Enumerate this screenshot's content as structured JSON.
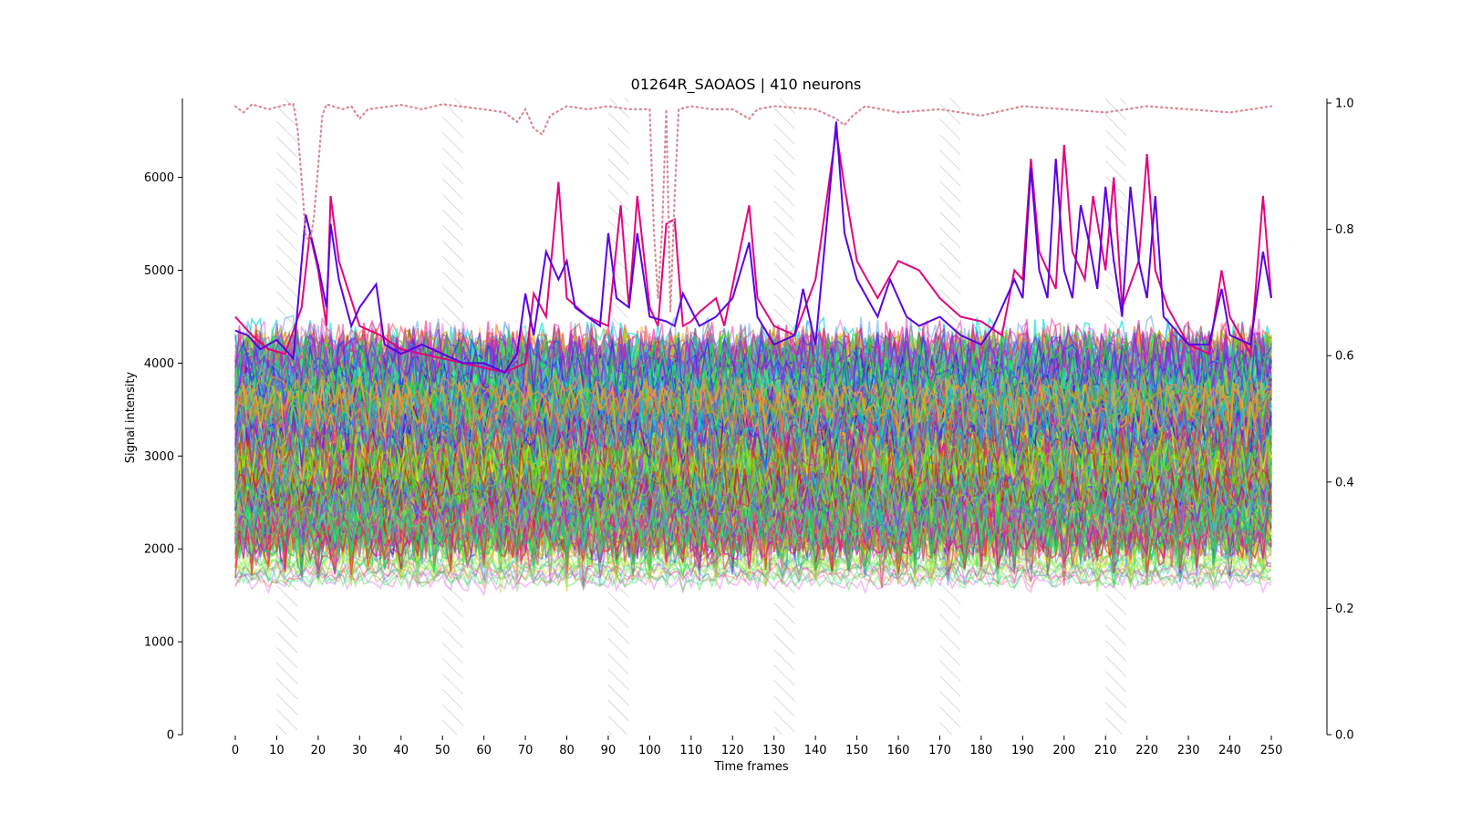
{
  "chart_data": {
    "type": "line",
    "title": "01264R_SAOAOS | 410 neurons",
    "xlabel": "Time frames",
    "ylabel": "Signal intensity",
    "xlim": [
      0,
      250
    ],
    "ylim": [
      0,
      6850
    ],
    "y2lim": [
      0,
      1.0
    ],
    "grid": false,
    "legend": "none",
    "x_ticks": [
      0,
      10,
      20,
      30,
      40,
      50,
      60,
      70,
      80,
      90,
      100,
      110,
      120,
      130,
      140,
      150,
      160,
      170,
      180,
      190,
      200,
      210,
      220,
      230,
      240,
      250
    ],
    "y_ticks": [
      0,
      1000,
      2000,
      3000,
      4000,
      5000,
      6000
    ],
    "y2_ticks": [
      0.0,
      0.2,
      0.4,
      0.6,
      0.8,
      1.0
    ],
    "stimulus_bands": [
      [
        10,
        15
      ],
      [
        50,
        55
      ],
      [
        90,
        95
      ],
      [
        130,
        135
      ],
      [
        170,
        175
      ],
      [
        210,
        215
      ]
    ],
    "neuron_count": 410,
    "bulk_range": [
      2000,
      4300
    ],
    "highlight_series": [
      {
        "color": "#e6007e",
        "points": [
          [
            0,
            4500
          ],
          [
            4,
            4300
          ],
          [
            8,
            4150
          ],
          [
            12,
            4100
          ],
          [
            16,
            4600
          ],
          [
            18,
            5400
          ],
          [
            20,
            5000
          ],
          [
            22,
            4400
          ],
          [
            23,
            5800
          ],
          [
            25,
            5100
          ],
          [
            30,
            4400
          ],
          [
            35,
            4300
          ],
          [
            40,
            4150
          ],
          [
            45,
            4100
          ],
          [
            50,
            4050
          ],
          [
            55,
            4000
          ],
          [
            60,
            3950
          ],
          [
            65,
            3900
          ],
          [
            70,
            4000
          ],
          [
            72,
            4750
          ],
          [
            75,
            4500
          ],
          [
            78,
            5950
          ],
          [
            80,
            4700
          ],
          [
            85,
            4500
          ],
          [
            90,
            4400
          ],
          [
            93,
            5700
          ],
          [
            95,
            4600
          ],
          [
            97,
            5800
          ],
          [
            100,
            4600
          ],
          [
            102,
            4400
          ],
          [
            104,
            5500
          ],
          [
            106,
            5550
          ],
          [
            108,
            4400
          ],
          [
            110,
            4450
          ],
          [
            112,
            4550
          ],
          [
            116,
            4700
          ],
          [
            118,
            4400
          ],
          [
            124,
            5700
          ],
          [
            126,
            4700
          ],
          [
            130,
            4400
          ],
          [
            135,
            4300
          ],
          [
            140,
            4900
          ],
          [
            145,
            6500
          ],
          [
            147,
            5900
          ],
          [
            150,
            5100
          ],
          [
            155,
            4700
          ],
          [
            160,
            5100
          ],
          [
            165,
            5000
          ],
          [
            170,
            4700
          ],
          [
            175,
            4500
          ],
          [
            180,
            4450
          ],
          [
            185,
            4300
          ],
          [
            188,
            5000
          ],
          [
            190,
            4900
          ],
          [
            192,
            6200
          ],
          [
            194,
            5200
          ],
          [
            198,
            4800
          ],
          [
            200,
            6350
          ],
          [
            202,
            5200
          ],
          [
            205,
            4900
          ],
          [
            207,
            5800
          ],
          [
            210,
            5000
          ],
          [
            212,
            6000
          ],
          [
            214,
            4600
          ],
          [
            218,
            5100
          ],
          [
            220,
            6250
          ],
          [
            222,
            5000
          ],
          [
            225,
            4600
          ],
          [
            230,
            4200
          ],
          [
            235,
            4100
          ],
          [
            238,
            5000
          ],
          [
            240,
            4500
          ],
          [
            245,
            4100
          ],
          [
            248,
            5800
          ],
          [
            250,
            4700
          ]
        ]
      },
      {
        "color": "#5a00e6",
        "points": [
          [
            0,
            4350
          ],
          [
            3,
            4300
          ],
          [
            6,
            4150
          ],
          [
            10,
            4250
          ],
          [
            14,
            4050
          ],
          [
            17,
            5600
          ],
          [
            20,
            5050
          ],
          [
            22,
            4600
          ],
          [
            23,
            5500
          ],
          [
            25,
            4900
          ],
          [
            28,
            4400
          ],
          [
            30,
            4600
          ],
          [
            34,
            4850
          ],
          [
            36,
            4200
          ],
          [
            40,
            4100
          ],
          [
            45,
            4200
          ],
          [
            50,
            4100
          ],
          [
            55,
            4000
          ],
          [
            60,
            4000
          ],
          [
            65,
            3900
          ],
          [
            68,
            4100
          ],
          [
            70,
            4750
          ],
          [
            72,
            4300
          ],
          [
            75,
            5200
          ],
          [
            78,
            4900
          ],
          [
            80,
            5100
          ],
          [
            82,
            4600
          ],
          [
            85,
            4500
          ],
          [
            88,
            4400
          ],
          [
            90,
            5400
          ],
          [
            92,
            4700
          ],
          [
            95,
            4600
          ],
          [
            97,
            5400
          ],
          [
            100,
            4500
          ],
          [
            104,
            4450
          ],
          [
            106,
            4400
          ],
          [
            108,
            4750
          ],
          [
            112,
            4400
          ],
          [
            116,
            4500
          ],
          [
            120,
            4700
          ],
          [
            124,
            5300
          ],
          [
            126,
            4500
          ],
          [
            130,
            4200
          ],
          [
            135,
            4300
          ],
          [
            137,
            4800
          ],
          [
            140,
            4200
          ],
          [
            145,
            6600
          ],
          [
            147,
            5400
          ],
          [
            150,
            4900
          ],
          [
            155,
            4500
          ],
          [
            158,
            4900
          ],
          [
            162,
            4500
          ],
          [
            165,
            4400
          ],
          [
            170,
            4500
          ],
          [
            175,
            4300
          ],
          [
            180,
            4200
          ],
          [
            183,
            4400
          ],
          [
            188,
            4900
          ],
          [
            190,
            4700
          ],
          [
            192,
            6100
          ],
          [
            194,
            5000
          ],
          [
            196,
            4700
          ],
          [
            198,
            6200
          ],
          [
            200,
            5000
          ],
          [
            202,
            4700
          ],
          [
            204,
            5700
          ],
          [
            206,
            5300
          ],
          [
            208,
            4800
          ],
          [
            210,
            5900
          ],
          [
            212,
            5100
          ],
          [
            214,
            4500
          ],
          [
            216,
            5900
          ],
          [
            218,
            5100
          ],
          [
            220,
            4700
          ],
          [
            222,
            5800
          ],
          [
            224,
            4500
          ],
          [
            226,
            4400
          ],
          [
            230,
            4200
          ],
          [
            235,
            4200
          ],
          [
            238,
            4800
          ],
          [
            240,
            4300
          ],
          [
            245,
            4200
          ],
          [
            248,
            5200
          ],
          [
            250,
            4700
          ]
        ]
      }
    ],
    "quality_trace": {
      "color": "#d88a96",
      "points": [
        [
          0,
          0.995
        ],
        [
          2,
          0.985
        ],
        [
          4,
          0.998
        ],
        [
          8,
          0.99
        ],
        [
          12,
          0.997
        ],
        [
          14,
          0.999
        ],
        [
          15,
          0.96
        ],
        [
          16,
          0.88
        ],
        [
          17,
          0.79
        ],
        [
          18,
          0.78
        ],
        [
          19,
          0.82
        ],
        [
          20,
          0.9
        ],
        [
          21,
          0.98
        ],
        [
          22,
          0.998
        ],
        [
          26,
          0.99
        ],
        [
          28,
          0.995
        ],
        [
          30,
          0.975
        ],
        [
          32,
          0.99
        ],
        [
          40,
          0.997
        ],
        [
          45,
          0.99
        ],
        [
          50,
          0.998
        ],
        [
          60,
          0.99
        ],
        [
          65,
          0.985
        ],
        [
          68,
          0.97
        ],
        [
          70,
          0.99
        ],
        [
          72,
          0.96
        ],
        [
          74,
          0.95
        ],
        [
          76,
          0.98
        ],
        [
          80,
          0.995
        ],
        [
          85,
          0.99
        ],
        [
          90,
          0.995
        ],
        [
          95,
          0.99
        ],
        [
          100,
          0.99
        ],
        [
          101,
          0.8
        ],
        [
          102,
          0.69
        ],
        [
          103,
          0.8
        ],
        [
          104,
          0.99
        ],
        [
          105,
          0.67
        ],
        [
          106,
          0.85
        ],
        [
          107,
          0.99
        ],
        [
          110,
          0.995
        ],
        [
          115,
          0.99
        ],
        [
          120,
          0.99
        ],
        [
          124,
          0.975
        ],
        [
          126,
          0.99
        ],
        [
          130,
          0.995
        ],
        [
          140,
          0.99
        ],
        [
          145,
          0.975
        ],
        [
          147,
          0.965
        ],
        [
          149,
          0.98
        ],
        [
          152,
          0.995
        ],
        [
          160,
          0.985
        ],
        [
          170,
          0.99
        ],
        [
          180,
          0.98
        ],
        [
          190,
          0.995
        ],
        [
          200,
          0.99
        ],
        [
          210,
          0.985
        ],
        [
          215,
          0.99
        ],
        [
          220,
          0.995
        ],
        [
          230,
          0.99
        ],
        [
          240,
          0.985
        ],
        [
          250,
          0.995
        ]
      ]
    }
  }
}
